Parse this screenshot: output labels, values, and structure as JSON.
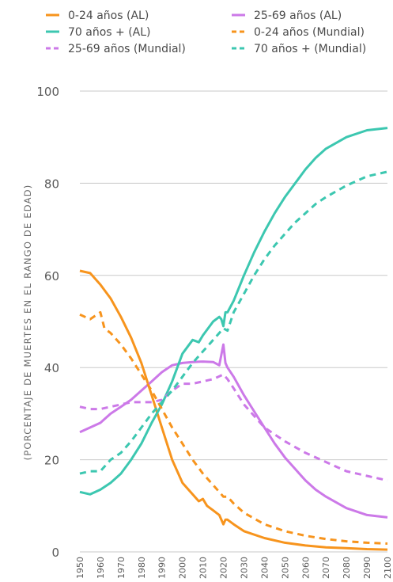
{
  "chart_data": {
    "type": "line",
    "title": "",
    "xlabel": "",
    "ylabel": "(PORCENTAJE DE MUERTES EN EL RANGO DE EDAD)",
    "xlim": [
      1950,
      2100
    ],
    "ylim": [
      0,
      100
    ],
    "yticks": [
      0,
      20,
      40,
      60,
      80,
      100
    ],
    "xticks": [
      1950,
      1960,
      1970,
      1980,
      1990,
      2000,
      2010,
      2020,
      2030,
      2040,
      2050,
      2060,
      2070,
      2080,
      2090,
      2100
    ],
    "grid": "horizontal",
    "legend_position": "top",
    "series": [
      {
        "name": "0-24 años (AL)",
        "color": "#f7941d",
        "dash": "solid",
        "points": [
          [
            1950,
            61
          ],
          [
            1955,
            60.5
          ],
          [
            1960,
            58
          ],
          [
            1965,
            55
          ],
          [
            1970,
            51
          ],
          [
            1975,
            46.5
          ],
          [
            1980,
            41
          ],
          [
            1985,
            34
          ],
          [
            1990,
            27
          ],
          [
            1995,
            20
          ],
          [
            2000,
            15
          ],
          [
            2005,
            12.5
          ],
          [
            2008,
            11
          ],
          [
            2010,
            11.5
          ],
          [
            2012,
            10
          ],
          [
            2015,
            9
          ],
          [
            2018,
            8
          ],
          [
            2020,
            6
          ],
          [
            2021,
            7
          ],
          [
            2022,
            7
          ],
          [
            2025,
            6
          ],
          [
            2030,
            4.5
          ],
          [
            2040,
            3
          ],
          [
            2050,
            2
          ],
          [
            2060,
            1.4
          ],
          [
            2070,
            1.0
          ],
          [
            2080,
            0.8
          ],
          [
            2090,
            0.6
          ],
          [
            2100,
            0.5
          ]
        ]
      },
      {
        "name": "25-69 años (AL)",
        "color": "#cc79e8",
        "dash": "solid",
        "points": [
          [
            1950,
            26
          ],
          [
            1955,
            27
          ],
          [
            1960,
            28
          ],
          [
            1965,
            30
          ],
          [
            1970,
            31.5
          ],
          [
            1975,
            33
          ],
          [
            1980,
            35
          ],
          [
            1985,
            37
          ],
          [
            1990,
            39
          ],
          [
            1995,
            40.5
          ],
          [
            2000,
            41
          ],
          [
            2005,
            41.2
          ],
          [
            2010,
            41.3
          ],
          [
            2015,
            41.2
          ],
          [
            2018,
            40.5
          ],
          [
            2020,
            45
          ],
          [
            2021,
            41
          ],
          [
            2022,
            40
          ],
          [
            2025,
            38
          ],
          [
            2030,
            34
          ],
          [
            2035,
            30.5
          ],
          [
            2040,
            27
          ],
          [
            2045,
            23.5
          ],
          [
            2050,
            20.5
          ],
          [
            2055,
            18
          ],
          [
            2060,
            15.5
          ],
          [
            2065,
            13.5
          ],
          [
            2070,
            12
          ],
          [
            2080,
            9.5
          ],
          [
            2090,
            8
          ],
          [
            2100,
            7.5
          ]
        ]
      },
      {
        "name": "70 años + (AL)",
        "color": "#3cc7b0",
        "dash": "solid",
        "points": [
          [
            1950,
            13
          ],
          [
            1955,
            12.5
          ],
          [
            1960,
            13.5
          ],
          [
            1965,
            15
          ],
          [
            1970,
            17
          ],
          [
            1975,
            20
          ],
          [
            1980,
            23.5
          ],
          [
            1985,
            28
          ],
          [
            1990,
            32
          ],
          [
            1995,
            37
          ],
          [
            2000,
            43
          ],
          [
            2005,
            46
          ],
          [
            2008,
            45.5
          ],
          [
            2010,
            47
          ],
          [
            2015,
            50
          ],
          [
            2018,
            51
          ],
          [
            2019,
            50.5
          ],
          [
            2020,
            49
          ],
          [
            2021,
            52
          ],
          [
            2022,
            52
          ],
          [
            2025,
            54.5
          ],
          [
            2030,
            60
          ],
          [
            2035,
            65
          ],
          [
            2040,
            69.5
          ],
          [
            2045,
            73.5
          ],
          [
            2050,
            77
          ],
          [
            2055,
            80
          ],
          [
            2060,
            83
          ],
          [
            2065,
            85.5
          ],
          [
            2070,
            87.5
          ],
          [
            2080,
            90
          ],
          [
            2090,
            91.5
          ],
          [
            2100,
            92
          ]
        ]
      },
      {
        "name": "0-24 años (Mundial)",
        "color": "#f7941d",
        "dash": "dashed",
        "points": [
          [
            1950,
            51.5
          ],
          [
            1955,
            50.5
          ],
          [
            1960,
            52
          ],
          [
            1962,
            48.5
          ],
          [
            1965,
            47.5
          ],
          [
            1970,
            45
          ],
          [
            1975,
            42
          ],
          [
            1980,
            38.5
          ],
          [
            1985,
            35
          ],
          [
            1990,
            31
          ],
          [
            1995,
            27
          ],
          [
            2000,
            23.5
          ],
          [
            2005,
            20
          ],
          [
            2010,
            17
          ],
          [
            2015,
            14.5
          ],
          [
            2020,
            12
          ],
          [
            2022,
            12
          ],
          [
            2025,
            10.5
          ],
          [
            2030,
            8.5
          ],
          [
            2040,
            6
          ],
          [
            2050,
            4.5
          ],
          [
            2060,
            3.5
          ],
          [
            2070,
            2.8
          ],
          [
            2080,
            2.3
          ],
          [
            2090,
            2
          ],
          [
            2100,
            1.8
          ]
        ]
      },
      {
        "name": "25-69 años (Mundial)",
        "color": "#cc79e8",
        "dash": "dashed",
        "points": [
          [
            1950,
            31.5
          ],
          [
            1955,
            31
          ],
          [
            1960,
            31
          ],
          [
            1965,
            31.5
          ],
          [
            1970,
            32
          ],
          [
            1975,
            32.5
          ],
          [
            1980,
            32.5
          ],
          [
            1985,
            32.5
          ],
          [
            1990,
            33
          ],
          [
            1995,
            35
          ],
          [
            2000,
            36.5
          ],
          [
            2005,
            36.5
          ],
          [
            2010,
            37
          ],
          [
            2015,
            37.5
          ],
          [
            2020,
            38.5
          ],
          [
            2022,
            37.5
          ],
          [
            2025,
            35.5
          ],
          [
            2030,
            32
          ],
          [
            2035,
            29.5
          ],
          [
            2040,
            27
          ],
          [
            2050,
            24
          ],
          [
            2060,
            21.5
          ],
          [
            2070,
            19.5
          ],
          [
            2080,
            17.5
          ],
          [
            2090,
            16.5
          ],
          [
            2100,
            15.5
          ]
        ]
      },
      {
        "name": "70 años + (Mundial)",
        "color": "#3cc7b0",
        "dash": "dashed",
        "points": [
          [
            1950,
            17
          ],
          [
            1955,
            17.5
          ],
          [
            1960,
            17.5
          ],
          [
            1965,
            20
          ],
          [
            1970,
            21.5
          ],
          [
            1975,
            24
          ],
          [
            1980,
            27
          ],
          [
            1985,
            30
          ],
          [
            1990,
            32.5
          ],
          [
            1995,
            35
          ],
          [
            2000,
            38
          ],
          [
            2005,
            41
          ],
          [
            2010,
            43.5
          ],
          [
            2015,
            46
          ],
          [
            2020,
            48.5
          ],
          [
            2022,
            48
          ],
          [
            2025,
            52
          ],
          [
            2030,
            56
          ],
          [
            2035,
            60
          ],
          [
            2040,
            63.5
          ],
          [
            2045,
            66.5
          ],
          [
            2050,
            69
          ],
          [
            2055,
            71.5
          ],
          [
            2060,
            73.5
          ],
          [
            2065,
            75.5
          ],
          [
            2070,
            77
          ],
          [
            2080,
            79.5
          ],
          [
            2090,
            81.5
          ],
          [
            2100,
            82.5
          ]
        ]
      }
    ]
  }
}
